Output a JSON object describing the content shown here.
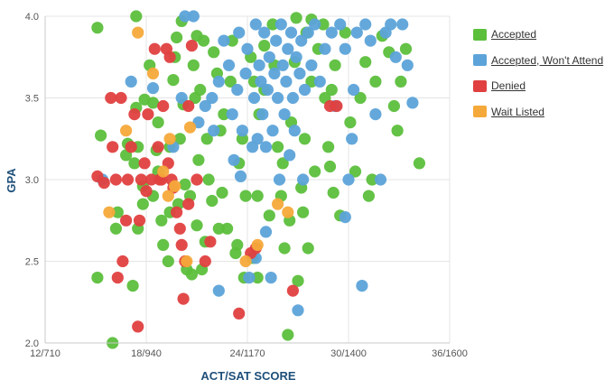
{
  "chart_data": {
    "type": "scatter",
    "xlabel": "ACT/SAT SCORE",
    "ylabel": "GPA",
    "x_ticks": [
      "12/710",
      "18/940",
      "24/1170",
      "30/1400",
      "36/1600"
    ],
    "x_tick_values": [
      12,
      18,
      24,
      30,
      36
    ],
    "xlim": [
      12,
      36
    ],
    "y_ticks": [
      "2.0",
      "2.5",
      "3.0",
      "3.5",
      "4.0"
    ],
    "y_tick_values": [
      2.0,
      2.5,
      3.0,
      3.5,
      4.0
    ],
    "ylim": [
      2.0,
      4.0
    ],
    "grid": true,
    "legend_position": "right",
    "series": [
      {
        "name": "Accepted",
        "color": "#5cbf3c",
        "points": [
          [
            15.1,
            3.93
          ],
          [
            15.3,
            3.27
          ],
          [
            15.1,
            2.4
          ],
          [
            16.3,
            2.8
          ],
          [
            16.2,
            2.7
          ],
          [
            16.0,
            2.0
          ],
          [
            16.9,
            3.22
          ],
          [
            16.8,
            3.15
          ],
          [
            17.5,
            3.2
          ],
          [
            17.3,
            3.1
          ],
          [
            17.5,
            2.7
          ],
          [
            17.4,
            3.44
          ],
          [
            17.8,
            2.96
          ],
          [
            17.8,
            2.85
          ],
          [
            17.2,
            2.35
          ],
          [
            17.4,
            4.0
          ],
          [
            17.9,
            3.49
          ],
          [
            18.4,
            3.47
          ],
          [
            18.2,
            3.7
          ],
          [
            18.7,
            3.35
          ],
          [
            18.6,
            3.18
          ],
          [
            18.7,
            3.05
          ],
          [
            18.4,
            2.9
          ],
          [
            18.9,
            2.75
          ],
          [
            19.3,
            2.5
          ],
          [
            19.4,
            2.8
          ],
          [
            19.0,
            2.6
          ],
          [
            19.6,
            3.61
          ],
          [
            19.7,
            3.75
          ],
          [
            19.4,
            3.2
          ],
          [
            19.8,
            3.87
          ],
          [
            20.1,
            3.97
          ],
          [
            20.2,
            3.46
          ],
          [
            20.0,
            3.25
          ],
          [
            20.3,
            2.97
          ],
          [
            19.9,
            2.85
          ],
          [
            20.4,
            2.45
          ],
          [
            20.6,
            2.9
          ],
          [
            20.8,
            3.7
          ],
          [
            20.9,
            3.5
          ],
          [
            21.0,
            3.88
          ],
          [
            21.1,
            3.12
          ],
          [
            21.0,
            2.72
          ],
          [
            20.7,
            2.42
          ],
          [
            21.5,
            2.62
          ],
          [
            21.4,
            3.85
          ],
          [
            21.2,
            3.55
          ],
          [
            21.7,
            3.0
          ],
          [
            21.3,
            2.45
          ],
          [
            21.9,
            2.87
          ],
          [
            22.2,
            3.65
          ],
          [
            22.0,
            3.78
          ],
          [
            22.5,
            2.92
          ],
          [
            22.3,
            2.7
          ],
          [
            22.6,
            3.4
          ],
          [
            22.8,
            2.7
          ],
          [
            23.1,
            3.85
          ],
          [
            23.0,
            3.6
          ],
          [
            23.4,
            2.6
          ],
          [
            23.3,
            2.55
          ],
          [
            23.5,
            3.1
          ],
          [
            23.8,
            2.4
          ],
          [
            23.9,
            2.9
          ],
          [
            24.3,
            2.52
          ],
          [
            24.6,
            2.9
          ],
          [
            24.7,
            3.4
          ],
          [
            24.4,
            3.6
          ],
          [
            25.0,
            3.55
          ],
          [
            25.0,
            3.82
          ],
          [
            25.3,
            2.78
          ],
          [
            25.6,
            3.7
          ],
          [
            25.8,
            3.2
          ],
          [
            26.0,
            2.9
          ],
          [
            26.2,
            2.58
          ],
          [
            26.4,
            2.05
          ],
          [
            26.5,
            2.75
          ],
          [
            26.6,
            3.35
          ],
          [
            26.8,
            3.72
          ],
          [
            27.0,
            2.38
          ],
          [
            27.2,
            2.95
          ],
          [
            27.3,
            2.8
          ],
          [
            27.6,
            2.58
          ],
          [
            27.8,
            3.6
          ],
          [
            27.5,
            3.9
          ],
          [
            28.0,
            3.05
          ],
          [
            28.2,
            3.8
          ],
          [
            28.5,
            3.95
          ],
          [
            28.6,
            3.5
          ],
          [
            28.8,
            3.2
          ],
          [
            29.0,
            3.55
          ],
          [
            29.2,
            3.7
          ],
          [
            29.5,
            2.78
          ],
          [
            29.8,
            3.9
          ],
          [
            30.1,
            3.35
          ],
          [
            30.4,
            3.05
          ],
          [
            30.7,
            3.5
          ],
          [
            31.0,
            3.72
          ],
          [
            31.2,
            2.9
          ],
          [
            31.4,
            3.0
          ],
          [
            31.6,
            3.6
          ],
          [
            32.0,
            3.88
          ],
          [
            32.4,
            3.78
          ],
          [
            32.7,
            3.45
          ],
          [
            32.9,
            3.3
          ],
          [
            33.1,
            3.6
          ],
          [
            33.4,
            3.8
          ],
          [
            34.2,
            3.1
          ],
          [
            25.5,
            3.95
          ],
          [
            26.9,
            3.99
          ],
          [
            27.8,
            3.98
          ],
          [
            22.4,
            3.3
          ],
          [
            23.7,
            3.25
          ],
          [
            24.2,
            3.75
          ],
          [
            27.4,
            3.25
          ],
          [
            28.9,
            3.08
          ],
          [
            29.1,
            2.92
          ],
          [
            24.6,
            2.4
          ],
          [
            21.6,
            3.25
          ],
          [
            26.1,
            3.1
          ]
        ]
      },
      {
        "name": "Accepted, Won't Attend",
        "color": "#5ca3d9",
        "points": [
          [
            15.4,
            3.0
          ],
          [
            17.1,
            3.6
          ],
          [
            18.4,
            3.56
          ],
          [
            19.6,
            3.2
          ],
          [
            20.1,
            3.5
          ],
          [
            20.3,
            4.0
          ],
          [
            20.8,
            4.0
          ],
          [
            21.1,
            3.35
          ],
          [
            21.5,
            3.45
          ],
          [
            21.9,
            3.5
          ],
          [
            22.0,
            3.3
          ],
          [
            22.3,
            3.6
          ],
          [
            22.3,
            2.32
          ],
          [
            22.6,
            3.85
          ],
          [
            22.9,
            3.7
          ],
          [
            23.1,
            3.4
          ],
          [
            23.2,
            3.12
          ],
          [
            23.4,
            3.55
          ],
          [
            23.5,
            3.9
          ],
          [
            23.7,
            3.3
          ],
          [
            23.9,
            3.65
          ],
          [
            24.0,
            3.8
          ],
          [
            24.1,
            2.4
          ],
          [
            24.3,
            3.2
          ],
          [
            24.4,
            3.5
          ],
          [
            24.5,
            3.95
          ],
          [
            24.6,
            3.25
          ],
          [
            24.7,
            3.7
          ],
          [
            24.8,
            3.6
          ],
          [
            24.9,
            3.4
          ],
          [
            25.0,
            3.9
          ],
          [
            25.1,
            3.2
          ],
          [
            25.2,
            3.55
          ],
          [
            25.3,
            3.75
          ],
          [
            25.4,
            2.4
          ],
          [
            25.5,
            3.3
          ],
          [
            25.6,
            3.65
          ],
          [
            25.7,
            3.85
          ],
          [
            25.8,
            3.5
          ],
          [
            25.9,
            3.0
          ],
          [
            26.0,
            3.95
          ],
          [
            26.1,
            3.7
          ],
          [
            26.2,
            3.4
          ],
          [
            26.3,
            3.6
          ],
          [
            26.4,
            3.8
          ],
          [
            26.5,
            3.15
          ],
          [
            26.6,
            3.9
          ],
          [
            26.7,
            3.5
          ],
          [
            26.8,
            3.3
          ],
          [
            26.9,
            3.75
          ],
          [
            27.0,
            2.2
          ],
          [
            27.1,
            3.65
          ],
          [
            27.2,
            3.85
          ],
          [
            27.3,
            3.0
          ],
          [
            27.4,
            3.55
          ],
          [
            27.6,
            3.9
          ],
          [
            27.8,
            3.7
          ],
          [
            28.0,
            3.95
          ],
          [
            28.3,
            3.6
          ],
          [
            28.6,
            3.8
          ],
          [
            29.0,
            3.9
          ],
          [
            29.2,
            3.45
          ],
          [
            29.5,
            3.95
          ],
          [
            29.8,
            3.8
          ],
          [
            30.0,
            3.0
          ],
          [
            30.2,
            3.25
          ],
          [
            30.3,
            3.55
          ],
          [
            30.5,
            3.9
          ],
          [
            30.8,
            2.35
          ],
          [
            31.0,
            3.95
          ],
          [
            31.3,
            3.85
          ],
          [
            31.6,
            3.4
          ],
          [
            31.9,
            3.0
          ],
          [
            32.2,
            3.9
          ],
          [
            32.5,
            3.95
          ],
          [
            32.8,
            3.75
          ],
          [
            33.2,
            3.95
          ],
          [
            33.5,
            3.7
          ],
          [
            33.8,
            3.47
          ],
          [
            29.8,
            2.77
          ],
          [
            25.1,
            2.68
          ],
          [
            24.5,
            2.52
          ],
          [
            23.6,
            3.02
          ]
        ]
      },
      {
        "name": "Denied",
        "color": "#e04040",
        "points": [
          [
            15.1,
            3.02
          ],
          [
            15.5,
            2.98
          ],
          [
            15.9,
            3.5
          ],
          [
            16.0,
            3.2
          ],
          [
            16.2,
            3.0
          ],
          [
            16.3,
            2.4
          ],
          [
            16.5,
            3.5
          ],
          [
            16.6,
            2.5
          ],
          [
            16.8,
            2.75
          ],
          [
            16.9,
            3.0
          ],
          [
            17.1,
            3.2
          ],
          [
            17.3,
            3.4
          ],
          [
            17.5,
            2.1
          ],
          [
            17.6,
            2.75
          ],
          [
            17.7,
            3.0
          ],
          [
            17.9,
            3.1
          ],
          [
            18.0,
            2.93
          ],
          [
            18.1,
            3.4
          ],
          [
            18.3,
            3.0
          ],
          [
            18.5,
            3.8
          ],
          [
            18.7,
            3.2
          ],
          [
            18.8,
            3.0
          ],
          [
            19.0,
            3.45
          ],
          [
            19.2,
            3.8
          ],
          [
            19.3,
            3.1
          ],
          [
            19.4,
            3.75
          ],
          [
            19.5,
            3.0
          ],
          [
            19.6,
            2.95
          ],
          [
            19.8,
            2.8
          ],
          [
            20.0,
            2.7
          ],
          [
            20.1,
            2.6
          ],
          [
            20.2,
            2.27
          ],
          [
            20.3,
            2.5
          ],
          [
            20.5,
            2.85
          ],
          [
            20.7,
            3.82
          ],
          [
            21.0,
            3.0
          ],
          [
            21.5,
            2.5
          ],
          [
            21.8,
            2.62
          ],
          [
            23.5,
            2.18
          ],
          [
            24.2,
            2.55
          ],
          [
            24.5,
            2.58
          ],
          [
            26.7,
            2.32
          ],
          [
            28.9,
            3.45
          ],
          [
            29.3,
            3.45
          ],
          [
            18.9,
            3.0
          ],
          [
            20.5,
            3.45
          ]
        ]
      },
      {
        "name": "Wait Listed",
        "color": "#f5a93a",
        "points": [
          [
            15.8,
            2.8
          ],
          [
            16.8,
            3.3
          ],
          [
            17.5,
            3.9
          ],
          [
            18.4,
            3.65
          ],
          [
            19.0,
            3.05
          ],
          [
            19.3,
            2.9
          ],
          [
            19.4,
            3.25
          ],
          [
            19.7,
            2.96
          ],
          [
            20.4,
            2.5
          ],
          [
            20.6,
            3.32
          ],
          [
            23.9,
            2.5
          ],
          [
            24.6,
            2.6
          ],
          [
            25.8,
            2.85
          ],
          [
            26.4,
            2.8
          ]
        ]
      }
    ]
  }
}
